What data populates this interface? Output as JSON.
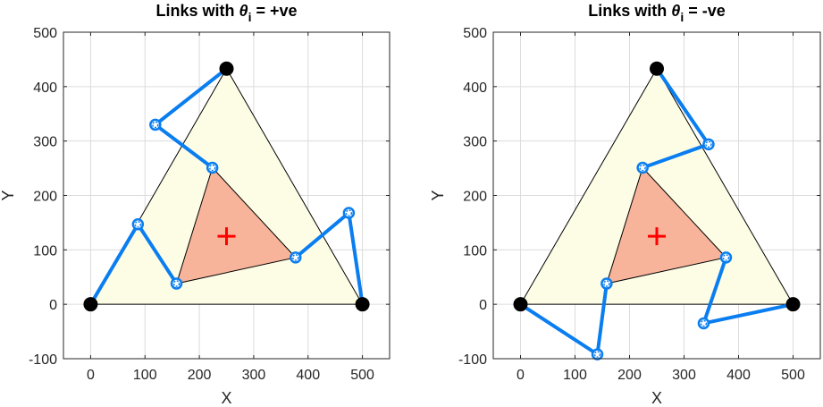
{
  "chart_data": [
    {
      "type": "mechanism-plot",
      "title": {
        "prefix": "Links with ",
        "symbol": "θ",
        "subscript": "i",
        "suffix": " = +ve"
      },
      "xlabel": "X",
      "ylabel": "Y",
      "xlim": [
        -50,
        550
      ],
      "ylim": [
        -100,
        500
      ],
      "xticks": [
        0,
        100,
        200,
        300,
        400,
        500
      ],
      "yticks": [
        -100,
        0,
        100,
        200,
        300,
        400,
        500
      ],
      "grid": true,
      "base_triangle": {
        "points": [
          [
            0,
            0
          ],
          [
            500,
            0
          ],
          [
            250,
            433
          ]
        ],
        "fill": "#fdfde6"
      },
      "platform_triangle": {
        "points": [
          [
            224,
            251
          ],
          [
            377,
            86
          ],
          [
            158,
            38
          ]
        ],
        "fill": "#f8b49b"
      },
      "center_marker": {
        "x": 250,
        "y": 125,
        "color": "#ff0000"
      },
      "base_joints": [
        [
          0,
          0
        ],
        [
          500,
          0
        ],
        [
          250,
          433
        ]
      ],
      "links": [
        {
          "points": [
            [
              0,
              0
            ],
            [
              87,
              147
            ],
            [
              158,
              38
            ]
          ]
        },
        {
          "points": [
            [
              500,
              0
            ],
            [
              475,
              168
            ],
            [
              377,
              86
            ]
          ]
        },
        {
          "points": [
            [
              250,
              433
            ],
            [
              119,
              330
            ],
            [
              224,
              251
            ]
          ]
        }
      ],
      "link_color": "#0a7ef0"
    },
    {
      "type": "mechanism-plot",
      "title": {
        "prefix": "Links with ",
        "symbol": "θ",
        "subscript": "i",
        "suffix": " = -ve"
      },
      "xlabel": "X",
      "ylabel": "Y",
      "xlim": [
        -50,
        550
      ],
      "ylim": [
        -100,
        500
      ],
      "xticks": [
        0,
        100,
        200,
        300,
        400,
        500
      ],
      "yticks": [
        -100,
        0,
        100,
        200,
        300,
        400,
        500
      ],
      "grid": true,
      "base_triangle": {
        "points": [
          [
            0,
            0
          ],
          [
            500,
            0
          ],
          [
            250,
            433
          ]
        ],
        "fill": "#fdfde6"
      },
      "platform_triangle": {
        "points": [
          [
            224,
            251
          ],
          [
            377,
            86
          ],
          [
            158,
            38
          ]
        ],
        "fill": "#f8b49b"
      },
      "center_marker": {
        "x": 250,
        "y": 125,
        "color": "#ff0000"
      },
      "base_joints": [
        [
          0,
          0
        ],
        [
          500,
          0
        ],
        [
          250,
          433
        ]
      ],
      "links": [
        {
          "points": [
            [
              0,
              0
            ],
            [
              141,
              -92
            ],
            [
              158,
              38
            ]
          ]
        },
        {
          "points": [
            [
              500,
              0
            ],
            [
              336,
              -35
            ],
            [
              377,
              86
            ]
          ]
        },
        {
          "points": [
            [
              250,
              433
            ],
            [
              345,
              294
            ],
            [
              224,
              251
            ]
          ]
        }
      ],
      "link_color": "#0a7ef0"
    }
  ]
}
